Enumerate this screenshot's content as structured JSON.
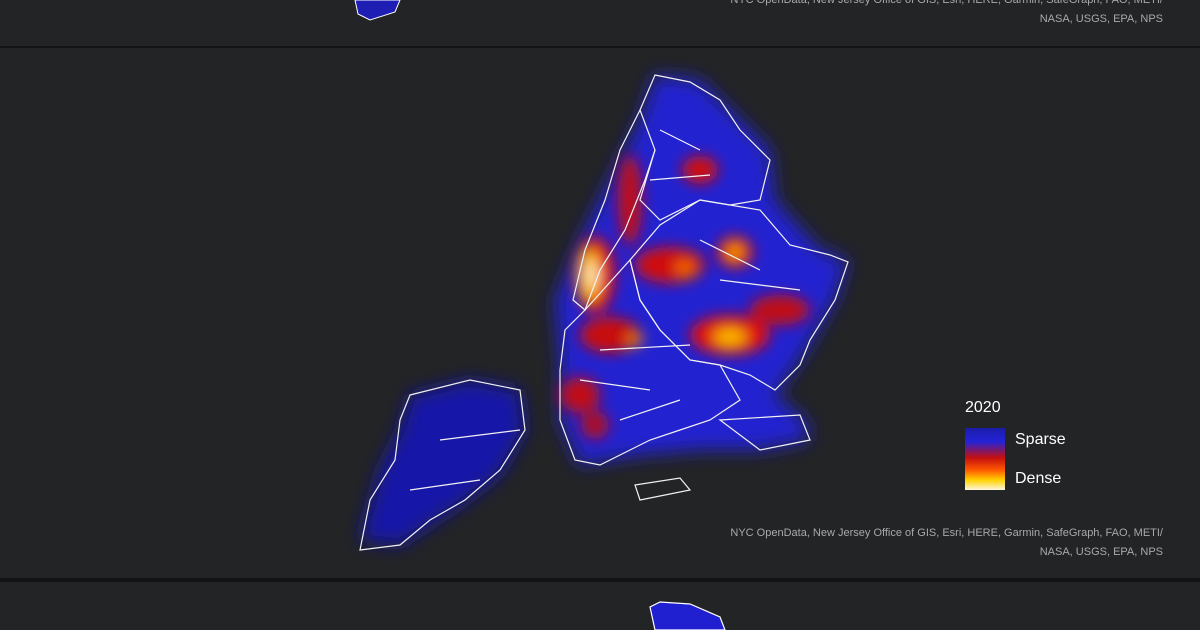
{
  "panels": [
    {
      "attribution": [
        "NYC OpenData, New Jersey Office of GIS, Esri, HERE, Garmin, SafeGraph, FAO, METI/",
        "NASA, USGS, EPA, NPS"
      ]
    },
    {
      "attribution": [
        "NYC OpenData, New Jersey Office of GIS, Esri, HERE, Garmin, SafeGraph, FAO, METI/",
        "NASA, USGS, EPA, NPS"
      ]
    }
  ],
  "legend": {
    "title": "2020",
    "labels": [
      "Sparse",
      "Dense"
    ]
  }
}
